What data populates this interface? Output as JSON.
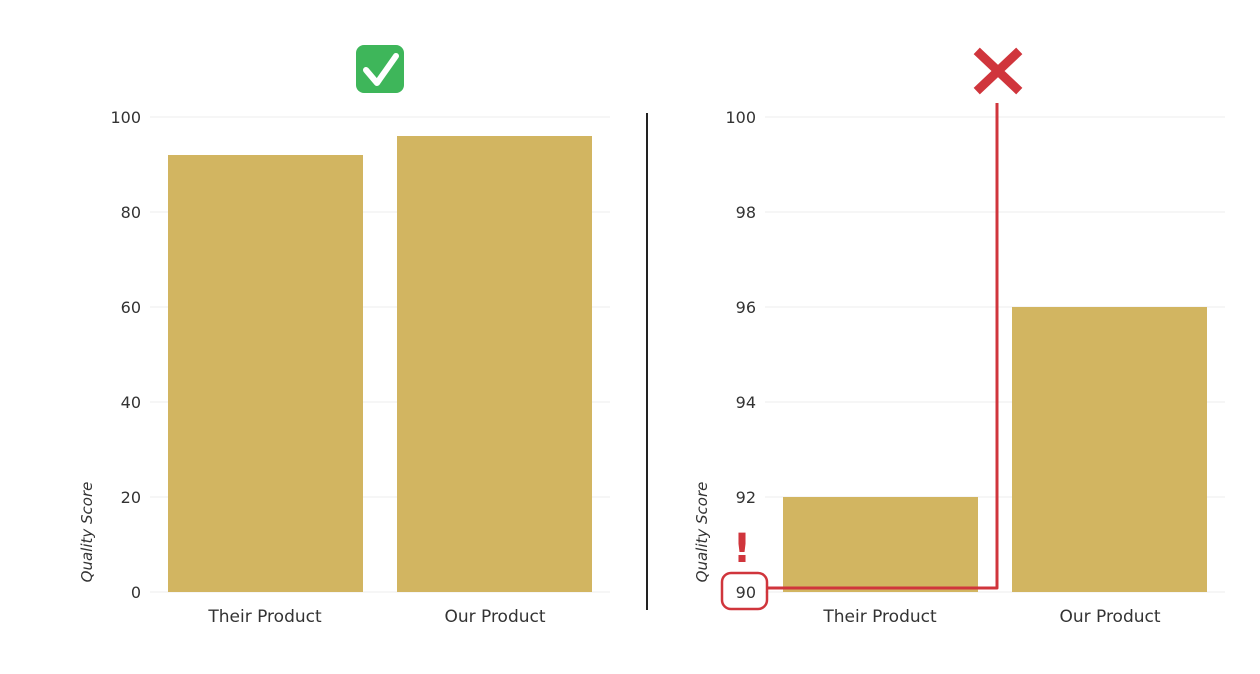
{
  "chart_data": [
    {
      "type": "bar",
      "categories": [
        "Their Product",
        "Our Product"
      ],
      "values": [
        92,
        96
      ],
      "ylabel": "Quality Score",
      "ylim": [
        0,
        100
      ],
      "yticks": [
        "0",
        "20",
        "40",
        "60",
        "80",
        "100"
      ],
      "grid": true,
      "verdict_icon": "check-mark-icon"
    },
    {
      "type": "bar",
      "categories": [
        "Their Product",
        "Our Product"
      ],
      "values": [
        92,
        96
      ],
      "ylabel": "Quality Score",
      "ylim": [
        90,
        100
      ],
      "yticks": [
        "90",
        "92",
        "94",
        "96",
        "98",
        "100"
      ],
      "grid": true,
      "verdict_icon": "cross-mark-icon",
      "annotation": {
        "mark": "!",
        "highlighted_tick": "90"
      }
    }
  ],
  "colors": {
    "bar": "#d2b561",
    "grid": "#eeeeee",
    "text": "#333333",
    "divider": "#222222",
    "check_bg": "#3eb65a",
    "check_fg": "#ffffff",
    "warning": "#d0353c"
  }
}
